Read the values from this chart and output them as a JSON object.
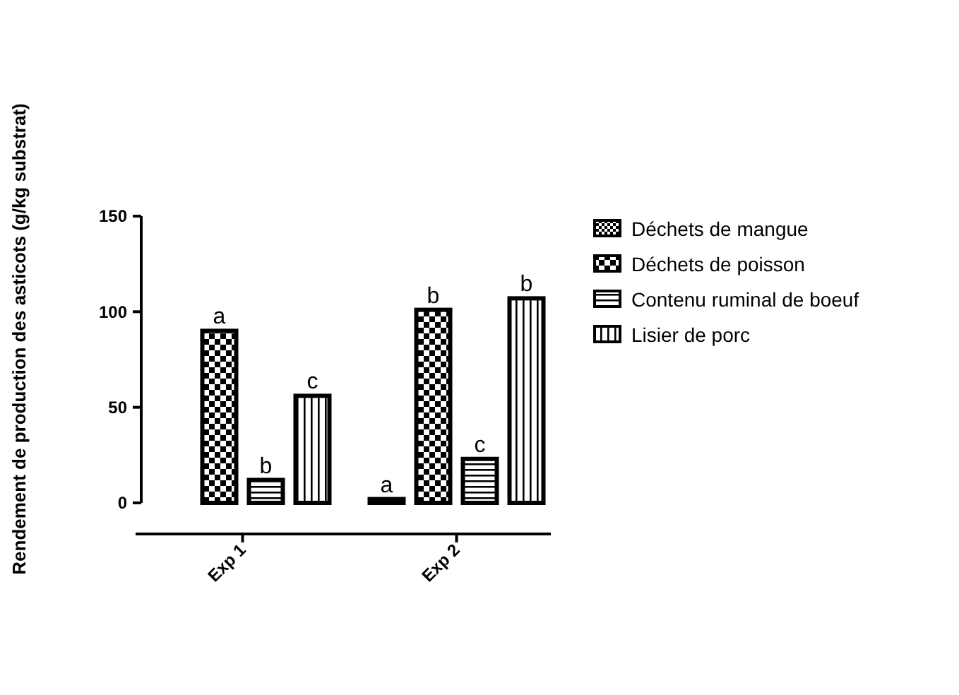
{
  "chart_data": {
    "type": "bar",
    "ylabel": "Rendement de production des asticots (g/kg substrat)",
    "categories": [
      "Exp 1",
      "Exp 2"
    ],
    "series": [
      {
        "name": "Déchets de mangue",
        "color": "#000000",
        "values": [
          null,
          2
        ],
        "value_labels": [
          null,
          "a"
        ]
      },
      {
        "name": "Déchets de poisson",
        "color": "#000000",
        "values": [
          90,
          101
        ],
        "value_labels": [
          "a",
          "b"
        ]
      },
      {
        "name": "Contenu ruminal de boeuf",
        "color": "#000000",
        "values": [
          12,
          23
        ],
        "value_labels": [
          "b",
          "c"
        ]
      },
      {
        "name": "Lisier de porc",
        "color": "#000000",
        "values": [
          56,
          107
        ],
        "value_labels": [
          "c",
          "b"
        ]
      }
    ],
    "ylim": [
      0,
      150
    ],
    "yticks": [
      0,
      50,
      100,
      150
    ],
    "grid": false,
    "legend": "right"
  }
}
